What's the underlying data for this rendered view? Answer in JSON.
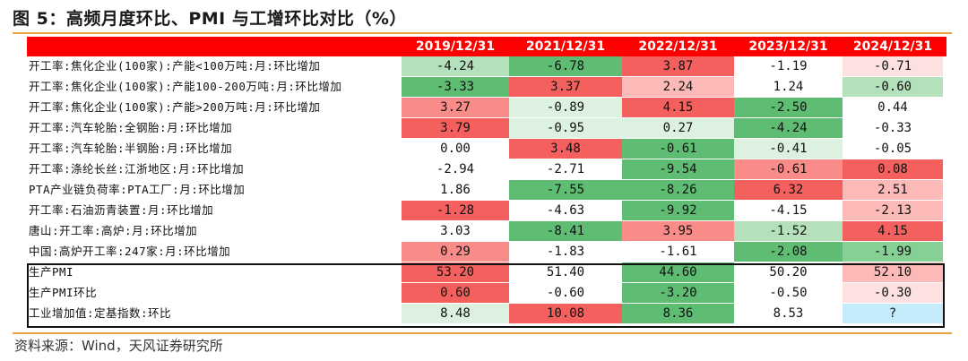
{
  "title": "图 5：高频月度环比、PMI 与工增环比对比（%）",
  "source": "资料来源：Wind，天风证券研究所",
  "colors": {
    "header_bg": "#ff0000",
    "rule": "#e9a23b",
    "g_dark": "#5fbd73",
    "g_med": "#86cf95",
    "g_light": "#b4e1bc",
    "g_pale": "#dcf1df",
    "r_dark": "#f4605e",
    "r_med": "#f98b89",
    "r_light": "#fbb9b8",
    "r_pale": "#fde1e1",
    "cyan": "#c5ecfb",
    "white": "#ffffff"
  },
  "table": {
    "columns": [
      "2019/12/31",
      "2021/12/31",
      "2022/12/31",
      "2023/12/31",
      "2024/12/31"
    ],
    "rows": [
      {
        "label": "开工率:焦化企业(100家):产能<100万吨:月:环比增加",
        "values": [
          "-4.24",
          "-6.78",
          "3.87",
          "-1.19",
          "-0.71"
        ],
        "colors": [
          "g_light",
          "g_dark",
          "r_dark",
          "white",
          "r_pale"
        ]
      },
      {
        "label": "开工率:焦化企业(100家):产能100-200万吨:月:环比增加",
        "values": [
          "-3.33",
          "3.37",
          "2.24",
          "1.24",
          "-0.60"
        ],
        "colors": [
          "g_dark",
          "r_dark",
          "r_light",
          "white",
          "g_light"
        ]
      },
      {
        "label": "开工率:焦化企业(100家):产能>200万吨:月:环比增加",
        "values": [
          "3.27",
          "-0.89",
          "4.15",
          "-2.50",
          "0.44"
        ],
        "colors": [
          "r_med",
          "g_pale",
          "r_dark",
          "g_dark",
          "white"
        ]
      },
      {
        "label": "开工率:汽车轮胎:全钢胎:月:环比增加",
        "values": [
          "3.79",
          "-0.95",
          "0.27",
          "-4.24",
          "-0.33"
        ],
        "colors": [
          "r_dark",
          "g_pale",
          "g_pale",
          "g_dark",
          "white"
        ]
      },
      {
        "label": "开工率:汽车轮胎:半钢胎:月:环比增加",
        "values": [
          "0.00",
          "3.48",
          "-0.61",
          "-0.41",
          "-0.05"
        ],
        "colors": [
          "white",
          "r_dark",
          "g_dark",
          "g_pale",
          "white"
        ]
      },
      {
        "label": "开工率:涤纶长丝:江浙地区:月:环比增加",
        "values": [
          "-2.94",
          "-2.71",
          "-9.54",
          "-0.61",
          "0.08"
        ],
        "colors": [
          "white",
          "white",
          "g_dark",
          "r_med",
          "r_dark"
        ]
      },
      {
        "label": "PTA产业链负荷率:PTA工厂:月:环比增加",
        "values": [
          "1.86",
          "-7.55",
          "-8.26",
          "6.32",
          "2.51"
        ],
        "colors": [
          "white",
          "g_dark",
          "g_dark",
          "r_dark",
          "r_light"
        ]
      },
      {
        "label": "开工率:石油沥青装置:月:环比增加",
        "values": [
          "-1.28",
          "-4.63",
          "-9.92",
          "-4.15",
          "-2.13"
        ],
        "colors": [
          "r_dark",
          "white",
          "g_dark",
          "white",
          "r_light"
        ]
      },
      {
        "label": "唐山:开工率:高炉:月:环比增加",
        "values": [
          "3.03",
          "-8.41",
          "3.95",
          "-1.52",
          "4.15"
        ],
        "colors": [
          "white",
          "g_dark",
          "r_med",
          "g_light",
          "r_dark"
        ]
      },
      {
        "label": "中国:高炉开工率:247家:月:环比增加",
        "values": [
          "0.29",
          "-1.83",
          "-1.61",
          "-2.08",
          "-1.99"
        ],
        "colors": [
          "r_med",
          "white",
          "white",
          "g_dark",
          "g_med"
        ]
      },
      {
        "label": "生产PMI",
        "values": [
          "53.20",
          "51.40",
          "44.60",
          "50.20",
          "52.10"
        ],
        "colors": [
          "r_dark",
          "white",
          "g_dark",
          "white",
          "r_light"
        ]
      },
      {
        "label": "生产PMI环比",
        "values": [
          "0.60",
          "-0.60",
          "-3.20",
          "-0.50",
          "-0.30"
        ],
        "colors": [
          "r_dark",
          "white",
          "g_dark",
          "white",
          "r_pale"
        ]
      },
      {
        "label": "工业增加值:定基指数:环比",
        "values": [
          "8.48",
          "10.08",
          "8.36",
          "8.53",
          "?"
        ],
        "colors": [
          "g_pale",
          "r_dark",
          "g_dark",
          "white",
          "cyan"
        ]
      }
    ]
  }
}
